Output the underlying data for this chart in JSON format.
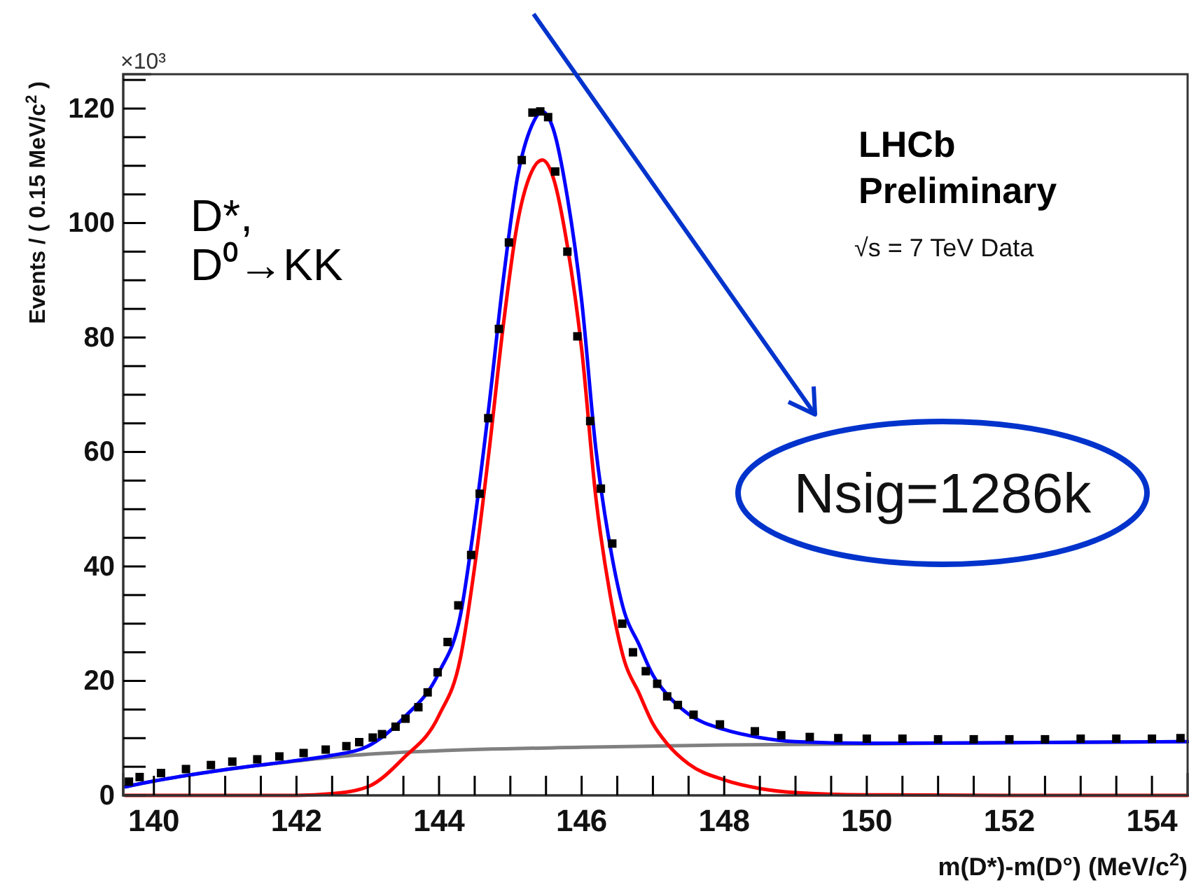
{
  "chart_data": {
    "type": "line",
    "xlabel": "m(D*)-m(D°) (MeV/c$^{2}$)",
    "ylabel": "Events / ( 0.15 MeV/c$^{2}$ )",
    "xlim": [
      139.57,
      154.5
    ],
    "ylim": [
      0,
      126
    ],
    "xticks": [
      140,
      {
        "value": 140.5,
        "label": null
      },
      {
        "value": 141,
        "label": null
      },
      {
        "value": 141.5,
        "label": null
      },
      142,
      {
        "value": 142.5,
        "label": null
      },
      {
        "value": 143,
        "label": null
      },
      {
        "value": 143.5,
        "label": null
      },
      144,
      {
        "value": 144.5,
        "label": null
      },
      {
        "value": 145,
        "label": null
      },
      {
        "value": 145.5,
        "label": null
      },
      146,
      {
        "value": 146.5,
        "label": null
      },
      {
        "value": 147,
        "label": null
      },
      {
        "value": 147.5,
        "label": null
      },
      148,
      {
        "value": 148.5,
        "label": null
      },
      {
        "value": 149,
        "label": null
      },
      {
        "value": 149.5,
        "label": null
      },
      150,
      {
        "value": 150.5,
        "label": null
      },
      {
        "value": 151,
        "label": null
      },
      {
        "value": 151.5,
        "label": null
      },
      152,
      {
        "value": 152.5,
        "label": null
      },
      {
        "value": 153,
        "label": null
      },
      {
        "value": 153.5,
        "label": null
      },
      154
    ],
    "yticks": [
      0,
      {
        "value": 5,
        "label": null
      },
      {
        "value": 10,
        "label": null
      },
      {
        "value": 15,
        "label": null
      },
      20,
      {
        "value": 25,
        "label": null
      },
      {
        "value": 30,
        "label": null
      },
      {
        "value": 35,
        "label": null
      },
      40,
      {
        "value": 45,
        "label": null
      },
      {
        "value": 50,
        "label": null
      },
      {
        "value": 55,
        "label": null
      },
      60,
      {
        "value": 65,
        "label": null
      },
      {
        "value": 70,
        "label": null
      },
      {
        "value": 75,
        "label": null
      },
      80,
      {
        "value": 85,
        "label": null
      },
      {
        "value": 90,
        "label": null
      },
      {
        "value": 95,
        "label": null
      },
      100,
      {
        "value": 105,
        "label": null
      },
      {
        "value": 110,
        "label": null
      },
      {
        "value": 115,
        "label": null
      },
      120,
      {
        "value": 125,
        "label": null
      }
    ],
    "grid": false,
    "series": [
      {
        "color": "#808080",
        "x": [
          139.6,
          140,
          141,
          142,
          143,
          144,
          146,
          148,
          150,
          152,
          154.5
        ],
        "values": [
          1.5,
          2.5,
          4.5,
          6.0,
          7.2,
          7.8,
          8.4,
          8.8,
          9.0,
          9.2,
          9.4
        ]
      },
      {
        "color": "#ff0000",
        "x": [
          139.6,
          142,
          142.5,
          143,
          143.5,
          144,
          144.3,
          144.5,
          144.7,
          144.9,
          145.1,
          145.3,
          145.45,
          145.6,
          145.8,
          146,
          146.2,
          146.4,
          146.6,
          146.8,
          147,
          147.2,
          147.5,
          148,
          148.5,
          149,
          150,
          152,
          154.5
        ],
        "values": [
          0,
          0,
          0.3,
          1.5,
          6.5,
          14,
          24,
          40,
          60,
          82,
          100,
          109,
          111,
          108,
          96,
          78,
          52,
          35,
          23.5,
          18,
          12.5,
          9,
          5.5,
          2.7,
          1.2,
          0.5,
          0.1,
          0,
          0
        ]
      },
      {
        "color": "#0000ff",
        "x": [
          139.6,
          140,
          141,
          142,
          142.5,
          143,
          143.5,
          144,
          144.3,
          144.5,
          144.7,
          144.9,
          145.1,
          145.3,
          145.45,
          145.6,
          145.8,
          146,
          146.2,
          146.4,
          146.6,
          146.8,
          147,
          147.2,
          147.5,
          148,
          148.5,
          149,
          150,
          152,
          154.5
        ],
        "values": [
          1.5,
          2.5,
          4.5,
          6.1,
          7.0,
          8.6,
          13.5,
          21.5,
          31.5,
          48,
          68,
          90,
          108,
          117,
          119.5,
          116.5,
          104.5,
          86.5,
          60.5,
          43.5,
          32,
          26.5,
          21,
          17.6,
          14.2,
          11.5,
          10.1,
          9.4,
          9.1,
          9.2,
          9.4
        ]
      },
      {
        "type": "scatter",
        "marker": "square",
        "color": "#000000",
        "x": [
          139.65,
          139.8,
          140.1,
          140.45,
          140.8,
          141.1,
          141.45,
          141.76,
          142.1,
          142.41,
          142.7,
          142.88,
          143.07,
          143.2,
          143.39,
          143.53,
          143.71,
          143.84,
          143.98,
          144.12,
          144.27,
          144.45,
          144.57,
          144.69,
          144.84,
          144.98,
          145.16,
          145.31,
          145.42,
          145.53,
          145.63,
          145.8,
          145.94,
          146.12,
          146.27,
          146.43,
          146.57,
          146.72,
          146.9,
          147.06,
          147.2,
          147.35,
          147.57,
          147.94,
          148.43,
          148.8,
          149.2,
          149.6,
          150.0,
          150.5,
          151.0,
          151.5,
          152.0,
          152.5,
          153.0,
          153.5,
          154.0,
          154.4
        ],
        "values": [
          2.4,
          3.2,
          3.9,
          4.6,
          5.3,
          5.9,
          6.3,
          6.8,
          7.4,
          8.0,
          8.6,
          9.3,
          10.1,
          10.7,
          12.0,
          13.4,
          15.4,
          18.0,
          21.5,
          26.8,
          33.2,
          42.0,
          52.7,
          65.9,
          81.5,
          96.6,
          111,
          119.3,
          119.5,
          118.5,
          109,
          95,
          80.2,
          65.4,
          53.6,
          44,
          30,
          25,
          21.7,
          19.5,
          17.3,
          15.8,
          14.1,
          12.4,
          11.2,
          10.5,
          10.2,
          10.0,
          9.9,
          9.9,
          9.8,
          9.8,
          9.8,
          9.8,
          9.9,
          9.9,
          9.9,
          10.0
        ]
      }
    ],
    "annotations": [
      "×10³",
      "D*,",
      "D⁰→KK",
      "LHCb",
      "Preliminary",
      "√s = 7 TeV Data",
      "Nsig=1286k"
    ]
  }
}
